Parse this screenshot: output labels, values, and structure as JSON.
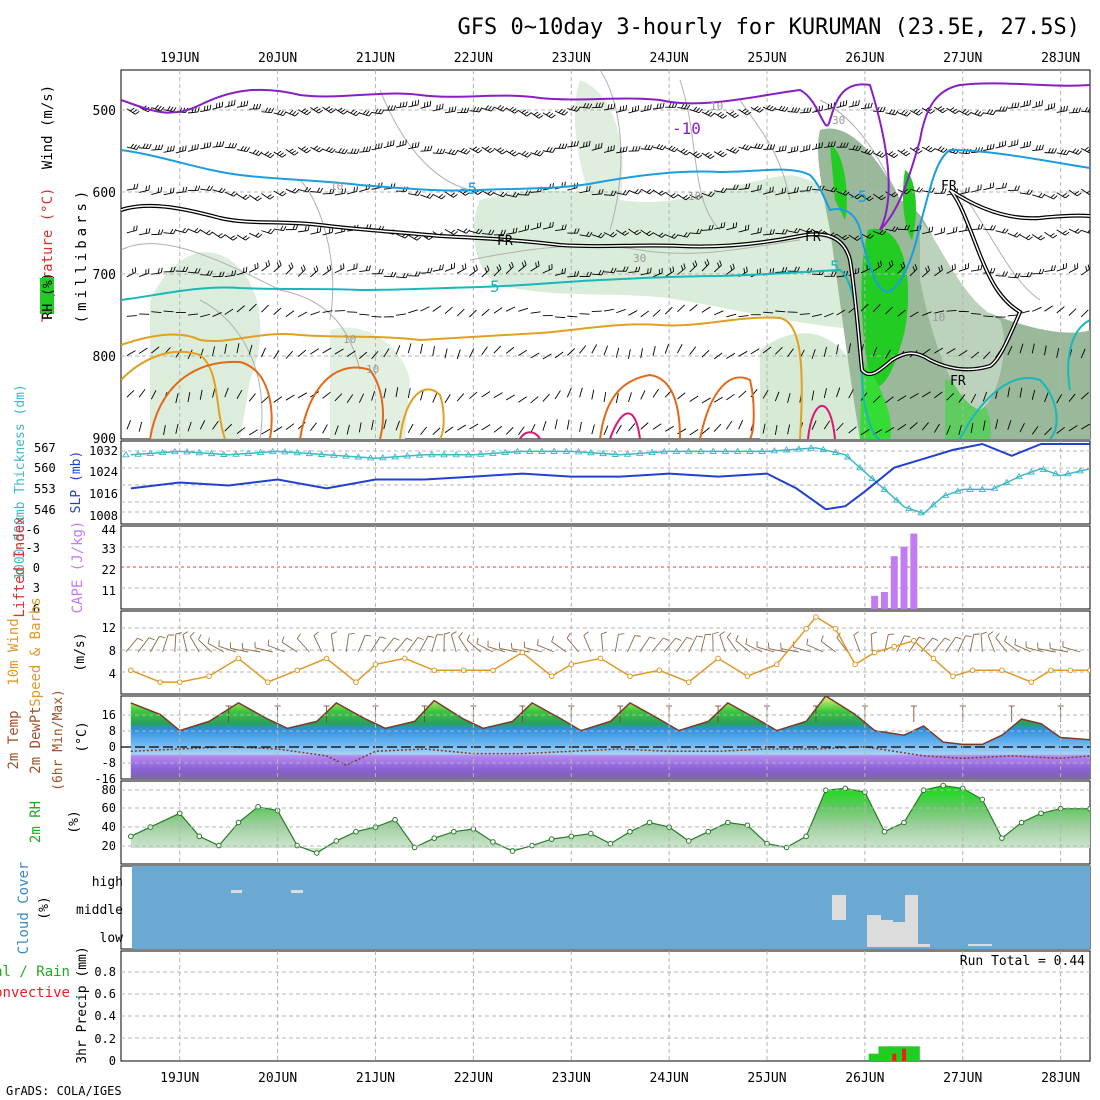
{
  "title": "GFS 0~10day 3-hourly for KURUMAN (23.5E, 27.5S)",
  "credit": "GrADS: COLA/IGES",
  "dates": [
    "19JUN",
    "20JUN",
    "21JUN",
    "22JUN",
    "23JUN",
    "24JUN",
    "25JUN",
    "26JUN",
    "27JUN",
    "28JUN"
  ],
  "colors": {
    "grid": "#b4b4b4",
    "temp_minus10": "#8a1fc1",
    "temp_minus5": "#1b9ee0",
    "temp_5": "#19b8b8",
    "freezing": "#000000",
    "temp_warm_a": "#e0a020",
    "temp_warm_b": "#e06a18",
    "temp_warm_c": "#d81a7a",
    "rh_light": "#d6ead6",
    "rh_dark": "#9ab89a",
    "rh_bright": "#22cc22",
    "thickness": "#3fb8c8",
    "slp": "#2040d0",
    "cape": "#c07cf0",
    "wind": "#e09a2c",
    "barb": "#8a6a48",
    "rh2m_fill": "#62b462",
    "cloud_bg": "#6ca9d2",
    "cloud_fill": "#dcdcdc",
    "precip_total": "#22cc22",
    "precip_conv": "#e82020"
  },
  "panels": {
    "upper": {
      "ylabel_rh": "RH (%)",
      "ylabel_temp": "Temperature (°C)",
      "ylabel_wind": "Wind (m/s)",
      "ylabel_unit": "(millibars)",
      "yticks": [
        "500",
        "600",
        "700",
        "800",
        "900"
      ],
      "contour_labels": {
        "m10": "-10",
        "m5a": "-5",
        "m5b": "-5",
        "p5a": "5",
        "p5b": "5",
        "fr1": "FR",
        "fr2": "FR",
        "fr3": "FR",
        "fr4": "FR",
        "rh30a": "30",
        "rh30b": "30",
        "rh10a": "10",
        "rh10b": "10",
        "rh10c": "10",
        "rh10d": "10",
        "rh10e": "10",
        "rh10f": "10"
      }
    },
    "thickness_slp": {
      "label_thickness": "1000-500mb Thickness (dm)",
      "label_slp": "SLP (mb)",
      "yticks_thickness": [
        "567",
        "560",
        "553",
        "546"
      ],
      "yticks_slp": [
        "1032",
        "1024",
        "1016",
        "1008"
      ]
    },
    "li_cape": {
      "label_li": "Lifted Index",
      "label_cape": "CAPE (J/kg)",
      "yticks_li": [
        "-6",
        "-3",
        "0",
        "3",
        "6"
      ],
      "yticks_cape": [
        "44",
        "33",
        "22",
        "11"
      ]
    },
    "wind10m": {
      "label": "10m Wind",
      "label2": "Speed & Barbs",
      "unit": "(m/s)",
      "yticks": [
        "12",
        "8",
        "4"
      ]
    },
    "temp2m": {
      "label1": "2m Temp",
      "label2": "2m DewPt",
      "label3": "(6hr Min/Max)",
      "unit": "(°C)",
      "yticks": [
        "16",
        "8",
        "0",
        "-8",
        "-16"
      ]
    },
    "rh2m": {
      "label": "2m RH",
      "unit": "(%)",
      "yticks": [
        "80",
        "60",
        "40",
        "20"
      ]
    },
    "cloud": {
      "label": "Cloud Cover",
      "unit": "(%)",
      "yticks": [
        "high",
        "middle",
        "low"
      ]
    },
    "precip": {
      "label_total": "Total / Rain",
      "label_conv": "Convective",
      "label_axis": "3hr Precip (mm)",
      "yticks": [
        "0.8",
        "0.6",
        "0.4",
        "0.2",
        "0"
      ],
      "run_total": "Run Total = 0.44"
    }
  },
  "chart_data": {
    "type": "line",
    "x": [
      "19JUN",
      "20JUN",
      "21JUN",
      "22JUN",
      "23JUN",
      "24JUN",
      "25JUN",
      "26JUN",
      "27JUN",
      "28JUN"
    ],
    "x_start_day": 18.4,
    "x_end_day": 28.3,
    "series": [
      {
        "name": "1000-500mb Thickness (dm)",
        "ylim": [
          543,
          567
        ],
        "x": [
          18.5,
          19.0,
          19.5,
          20.0,
          20.5,
          21.0,
          21.5,
          22.0,
          22.5,
          23.0,
          23.5,
          24.0,
          24.5,
          25.0,
          25.5,
          25.8,
          26.0,
          26.2,
          26.4,
          26.6,
          26.8,
          27.0,
          27.3,
          27.6,
          27.8,
          28.0,
          28.3
        ],
        "values": [
          563,
          564,
          563,
          564,
          563,
          562,
          563,
          563,
          564,
          564,
          563,
          564,
          564,
          564,
          565,
          563,
          558,
          553,
          548,
          546,
          551,
          553,
          553,
          557,
          559,
          557,
          559
        ]
      },
      {
        "name": "SLP (mb)",
        "ylim": [
          1004,
          1032
        ],
        "x": [
          18.5,
          19.0,
          19.5,
          20.0,
          20.5,
          21.0,
          21.5,
          22.0,
          22.5,
          23.0,
          23.5,
          24.0,
          24.5,
          25.0,
          25.3,
          25.6,
          25.8,
          26.0,
          26.3,
          26.6,
          26.9,
          27.2,
          27.5,
          27.8,
          28.0,
          28.3
        ],
        "values": [
          1016,
          1018,
          1017,
          1019,
          1016,
          1019,
          1019,
          1020,
          1021,
          1020,
          1020,
          1021,
          1020,
          1021,
          1016,
          1009,
          1010,
          1015,
          1023,
          1026,
          1029,
          1031,
          1027,
          1031,
          1031,
          1031
        ]
      },
      {
        "name": "CAPE (J/kg)",
        "ylim": [
          0,
          44
        ],
        "x": [
          26.1,
          26.2,
          26.3,
          26.4,
          26.5
        ],
        "values": [
          7,
          9,
          28,
          33,
          40
        ]
      },
      {
        "name": "10m Wind Speed (m/s)",
        "ylim": [
          0,
          14
        ],
        "x": [
          18.5,
          18.8,
          19.0,
          19.3,
          19.6,
          19.9,
          20.2,
          20.5,
          20.8,
          21.0,
          21.3,
          21.6,
          21.9,
          22.2,
          22.5,
          22.8,
          23.0,
          23.3,
          23.6,
          23.9,
          24.2,
          24.5,
          24.8,
          25.1,
          25.4,
          25.5,
          25.7,
          25.9,
          26.1,
          26.3,
          26.5,
          26.7,
          26.9,
          27.1,
          27.4,
          27.7,
          27.9,
          28.1,
          28.3
        ],
        "values": [
          4,
          2,
          2,
          3,
          6,
          2,
          4,
          6,
          2,
          5,
          6,
          4,
          4,
          4,
          7,
          3,
          5,
          6,
          3,
          4,
          2,
          6,
          3,
          5,
          11,
          13,
          11,
          5,
          7,
          8,
          9,
          6,
          3,
          4,
          4,
          2,
          4,
          4,
          4
        ]
      },
      {
        "name": "2m Temp (°C)",
        "ylim": [
          -16,
          20
        ],
        "x": [
          18.5,
          18.8,
          19.0,
          19.3,
          19.6,
          19.9,
          20.1,
          20.4,
          20.6,
          20.9,
          21.1,
          21.4,
          21.6,
          21.9,
          22.1,
          22.4,
          22.6,
          22.9,
          23.1,
          23.4,
          23.6,
          23.9,
          24.1,
          24.4,
          24.6,
          24.9,
          25.1,
          25.4,
          25.6,
          25.9,
          26.1,
          26.4,
          26.6,
          26.8,
          27.0,
          27.2,
          27.4,
          27.6,
          27.8,
          28.0,
          28.3
        ],
        "values": [
          17,
          12,
          5,
          9,
          17,
          10,
          6,
          9,
          17,
          10,
          6,
          9,
          18,
          10,
          6,
          9,
          17,
          10,
          5,
          9,
          17,
          10,
          5,
          9,
          17,
          10,
          5,
          9,
          20,
          12,
          5,
          3,
          7,
          0,
          -1,
          -1,
          3,
          10,
          8,
          2,
          1
        ]
      },
      {
        "name": "2m DewPt (°C)",
        "ylim": [
          -16,
          20
        ],
        "x": [
          18.5,
          19.0,
          19.5,
          20.0,
          20.5,
          20.7,
          21.0,
          21.5,
          22.0,
          22.5,
          23.0,
          23.5,
          24.0,
          24.5,
          25.0,
          25.5,
          26.0,
          26.3,
          26.6,
          27.0,
          27.5,
          28.0,
          28.3
        ],
        "values": [
          -4,
          -3,
          -2,
          -3,
          -6,
          -10,
          -4,
          -3,
          -5,
          -5,
          -4,
          -3,
          -4,
          -4,
          -3,
          -3,
          -2,
          -4,
          -6,
          -7,
          -6,
          -7,
          -6
        ]
      },
      {
        "name": "2m RH (%)",
        "ylim": [
          0,
          90
        ],
        "x": [
          18.5,
          18.7,
          19.0,
          19.2,
          19.4,
          19.6,
          19.8,
          20.0,
          20.2,
          20.4,
          20.6,
          20.8,
          21.0,
          21.2,
          21.4,
          21.6,
          21.8,
          22.0,
          22.2,
          22.4,
          22.6,
          22.8,
          23.0,
          23.2,
          23.4,
          23.6,
          23.8,
          24.0,
          24.2,
          24.4,
          24.6,
          24.8,
          25.0,
          25.2,
          25.4,
          25.6,
          25.8,
          26.0,
          26.2,
          26.4,
          26.6,
          26.8,
          27.0,
          27.2,
          27.4,
          27.6,
          27.8,
          28.0,
          28.3
        ],
        "values": [
          30,
          40,
          55,
          30,
          20,
          45,
          62,
          58,
          20,
          12,
          25,
          35,
          40,
          48,
          18,
          28,
          35,
          38,
          24,
          14,
          20,
          27,
          30,
          33,
          22,
          35,
          45,
          40,
          25,
          35,
          45,
          42,
          22,
          18,
          30,
          80,
          82,
          78,
          35,
          45,
          80,
          85,
          82,
          70,
          28,
          45,
          55,
          60,
          60
        ]
      },
      {
        "name": "3hr Precip Total (mm)",
        "ylim": [
          0,
          0.9
        ],
        "x": [
          26.1,
          26.2,
          26.3,
          26.4,
          26.5
        ],
        "values": [
          0.06,
          0.12,
          0.12,
          0.12,
          0.12
        ]
      },
      {
        "name": "Convective Precip (mm)",
        "ylim": [
          0,
          0.9
        ],
        "x": [
          26.3,
          26.4
        ],
        "values": [
          0.06,
          0.1
        ]
      }
    ]
  }
}
